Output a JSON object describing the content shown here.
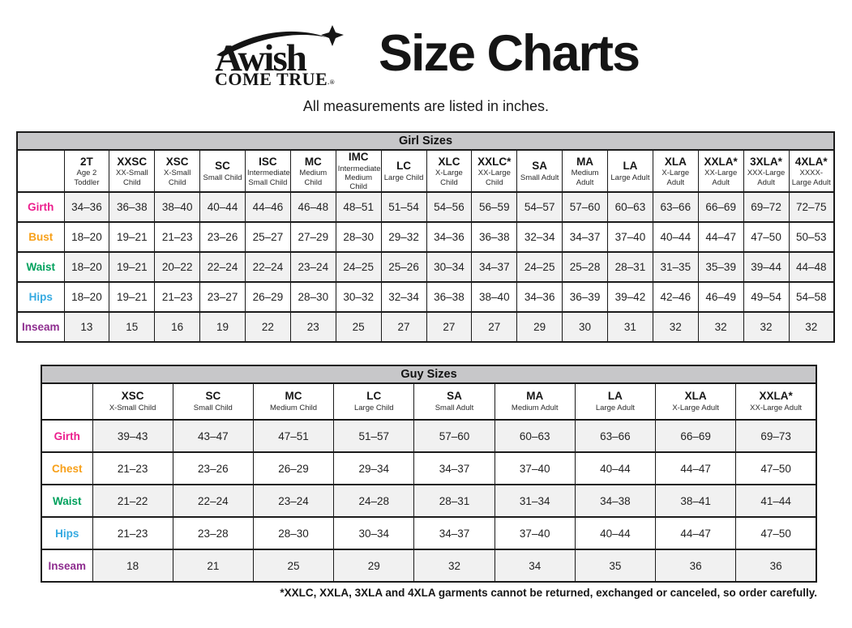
{
  "header": {
    "logo_line1": "Awish",
    "logo_line2": "COME TRUE",
    "logo_reg": "®",
    "title": "Size Charts",
    "subtitle": "All measurements are listed in inches."
  },
  "colors": {
    "girth": "#ec1e8d",
    "bust": "#f7a01a",
    "chest": "#f7a01a",
    "waist": "#00a15d",
    "hips": "#35aae1",
    "inseam": "#8e2d8f",
    "bar_gray": "#c7c7c9",
    "row_gray": "#f1f1f1"
  },
  "girl_table": {
    "title": "Girl Sizes",
    "columns": [
      {
        "code": "2T",
        "desc": "Age 2 Toddler"
      },
      {
        "code": "XXSC",
        "desc": "XX-Small Child"
      },
      {
        "code": "XSC",
        "desc": "X-Small Child"
      },
      {
        "code": "SC",
        "desc": "Small Child"
      },
      {
        "code": "ISC",
        "desc": "Intermediate Small Child"
      },
      {
        "code": "MC",
        "desc": "Medium Child"
      },
      {
        "code": "IMC",
        "desc": "Intermediate Medium Child"
      },
      {
        "code": "LC",
        "desc": "Large Child"
      },
      {
        "code": "XLC",
        "desc": "X-Large Child"
      },
      {
        "code": "XXLC*",
        "desc": "XX-Large Child"
      },
      {
        "code": "SA",
        "desc": "Small Adult"
      },
      {
        "code": "MA",
        "desc": "Medium Adult"
      },
      {
        "code": "LA",
        "desc": "Large Adult"
      },
      {
        "code": "XLA",
        "desc": "X-Large Adult"
      },
      {
        "code": "XXLA*",
        "desc": "XX-Large Adult"
      },
      {
        "code": "3XLA*",
        "desc": "XXX-Large Adult"
      },
      {
        "code": "4XLA*",
        "desc": "XXXX-Large Adult"
      }
    ],
    "rows": [
      {
        "label": "Girth",
        "color_key": "girth",
        "values": [
          "34–36",
          "36–38",
          "38–40",
          "40–44",
          "44–46",
          "46–48",
          "48–51",
          "51–54",
          "54–56",
          "56–59",
          "54–57",
          "57–60",
          "60–63",
          "63–66",
          "66–69",
          "69–72",
          "72–75"
        ]
      },
      {
        "label": "Bust",
        "color_key": "bust",
        "values": [
          "18–20",
          "19–21",
          "21–23",
          "23–26",
          "25–27",
          "27–29",
          "28–30",
          "29–32",
          "34–36",
          "36–38",
          "32–34",
          "34–37",
          "37–40",
          "40–44",
          "44–47",
          "47–50",
          "50–53"
        ]
      },
      {
        "label": "Waist",
        "color_key": "waist",
        "values": [
          "18–20",
          "19–21",
          "20–22",
          "22–24",
          "22–24",
          "23–24",
          "24–25",
          "25–26",
          "30–34",
          "34–37",
          "24–25",
          "25–28",
          "28–31",
          "31–35",
          "35–39",
          "39–44",
          "44–48"
        ]
      },
      {
        "label": "Hips",
        "color_key": "hips",
        "values": [
          "18–20",
          "19–21",
          "21–23",
          "23–27",
          "26–29",
          "28–30",
          "30–32",
          "32–34",
          "36–38",
          "38–40",
          "34–36",
          "36–39",
          "39–42",
          "42–46",
          "46–49",
          "49–54",
          "54–58"
        ]
      },
      {
        "label": "Inseam",
        "color_key": "inseam",
        "values": [
          "13",
          "15",
          "16",
          "19",
          "22",
          "23",
          "25",
          "27",
          "27",
          "27",
          "29",
          "30",
          "31",
          "32",
          "32",
          "32",
          "32"
        ]
      }
    ],
    "label_col_width": 58
  },
  "guy_table": {
    "title": "Guy Sizes",
    "columns": [
      {
        "code": "XSC",
        "desc": "X-Small Child"
      },
      {
        "code": "SC",
        "desc": "Small Child"
      },
      {
        "code": "MC",
        "desc": "Medium Child"
      },
      {
        "code": "LC",
        "desc": "Large Child"
      },
      {
        "code": "SA",
        "desc": "Small Adult"
      },
      {
        "code": "MA",
        "desc": "Medium Adult"
      },
      {
        "code": "LA",
        "desc": "Large Adult"
      },
      {
        "code": "XLA",
        "desc": "X-Large Adult"
      },
      {
        "code": "XXLA*",
        "desc": "XX-Large Adult"
      }
    ],
    "rows": [
      {
        "label": "Girth",
        "color_key": "girth",
        "values": [
          "39–43",
          "43–47",
          "47–51",
          "51–57",
          "57–60",
          "60–63",
          "63–66",
          "66–69",
          "69–73"
        ]
      },
      {
        "label": "Chest",
        "color_key": "chest",
        "values": [
          "21–23",
          "23–26",
          "26–29",
          "29–34",
          "34–37",
          "37–40",
          "40–44",
          "44–47",
          "47–50"
        ]
      },
      {
        "label": "Waist",
        "color_key": "waist",
        "values": [
          "21–22",
          "22–24",
          "23–24",
          "24–28",
          "28–31",
          "31–34",
          "34–38",
          "38–41",
          "41–44"
        ]
      },
      {
        "label": "Hips",
        "color_key": "hips",
        "values": [
          "21–23",
          "23–28",
          "28–30",
          "30–34",
          "34–37",
          "37–40",
          "40–44",
          "44–47",
          "47–50"
        ]
      },
      {
        "label": "Inseam",
        "color_key": "inseam",
        "values": [
          "18",
          "21",
          "25",
          "29",
          "32",
          "34",
          "35",
          "36",
          "36"
        ]
      }
    ],
    "label_col_width": 63
  },
  "footnote": "*XXLC, XXLA, 3XLA and 4XLA garments cannot be returned, exchanged or canceled, so order carefully."
}
